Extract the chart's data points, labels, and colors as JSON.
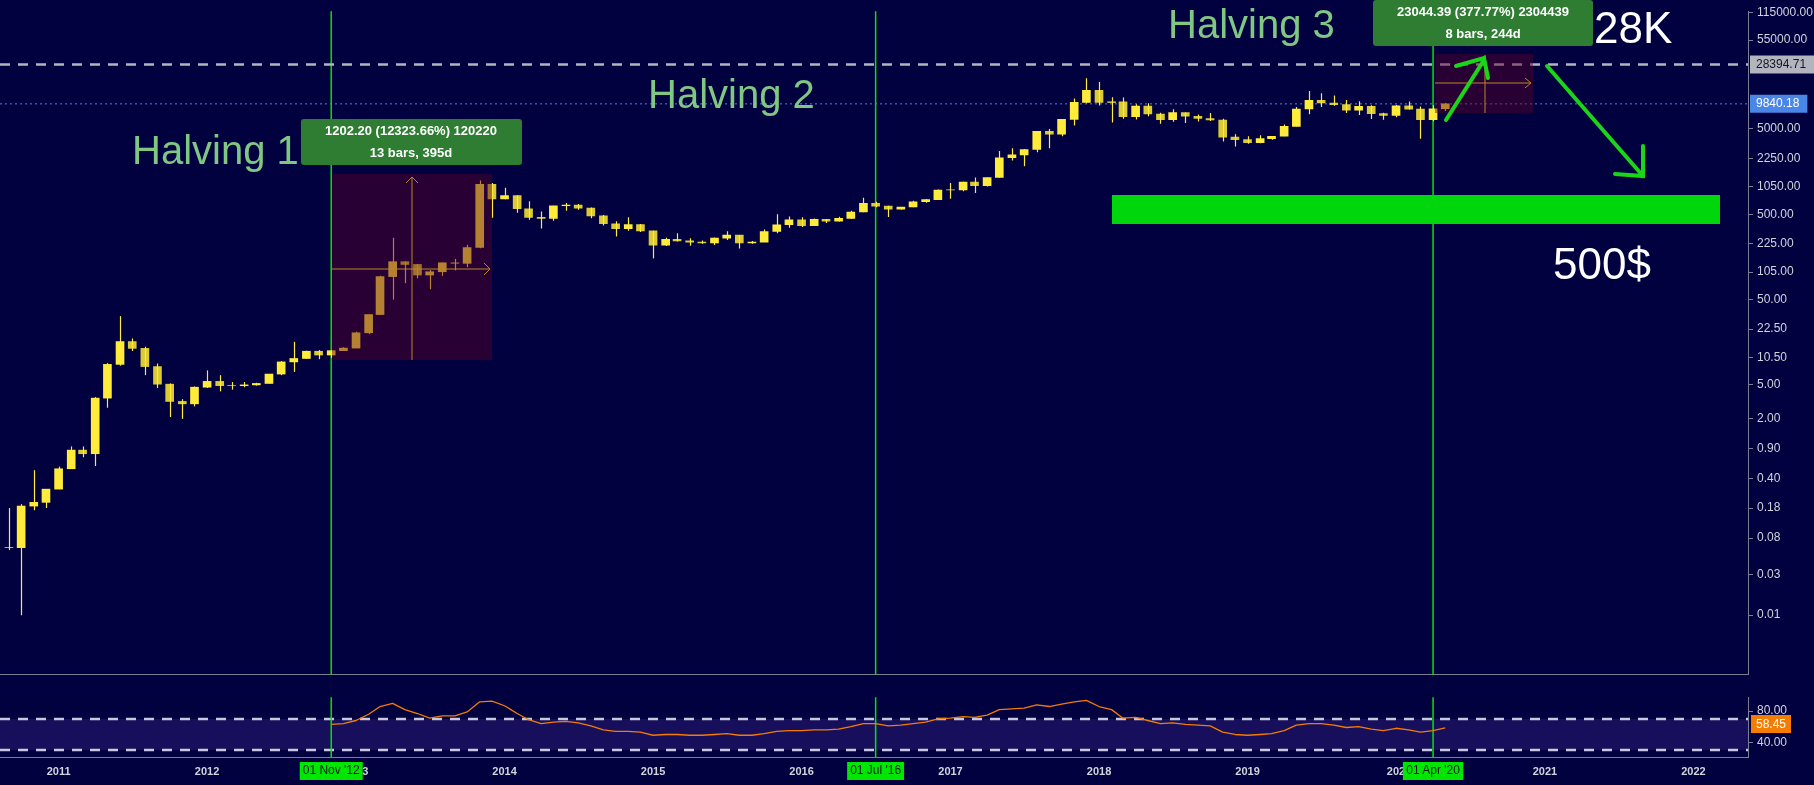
{
  "chart_data": [
    {
      "type": "candlestick",
      "log": true,
      "grid": false,
      "legend": false,
      "tick_labels": "y",
      "xlim": [
        "2010-08-10",
        "2022-05-15"
      ],
      "ylim": [
        0.002,
        120000
      ],
      "yticks": [
        0.01,
        0.03,
        0.08,
        0.18,
        {
          "value": 0.4,
          "label": "0.40"
        },
        {
          "value": 0.9,
          "label": "0.90"
        },
        {
          "value": 2,
          "label": "2.00"
        },
        {
          "value": 5,
          "label": "5.00"
        },
        {
          "value": 10.5,
          "label": "10.50"
        },
        {
          "value": 22.5,
          "label": "22.50"
        },
        {
          "value": 50,
          "label": "50.00"
        },
        {
          "value": 105,
          "label": "105.00"
        },
        {
          "value": 225,
          "label": "225.00"
        },
        {
          "value": 500,
          "label": "500.00"
        },
        {
          "value": 1050,
          "label": "1050.00"
        },
        {
          "value": 2250,
          "label": "2250.00"
        },
        {
          "value": 5000,
          "label": "5000.00"
        },
        {
          "value": 55000,
          "label": "55000.00"
        },
        {
          "value": 115000,
          "label": "115000.00"
        }
      ],
      "x": [
        "2010-09",
        "2010-10",
        "2010-11",
        "2010-12",
        "2011-01",
        "2011-02",
        "2011-03",
        "2011-04",
        "2011-05",
        "2011-06",
        "2011-07",
        "2011-08",
        "2011-09",
        "2011-10",
        "2011-11",
        "2011-12",
        "2012-01",
        "2012-02",
        "2012-03",
        "2012-04",
        "2012-05",
        "2012-06",
        "2012-07",
        "2012-08",
        "2012-09",
        "2012-10",
        "2012-11",
        "2012-12",
        "2013-01",
        "2013-02",
        "2013-03",
        "2013-04",
        "2013-05",
        "2013-06",
        "2013-07",
        "2013-08",
        "2013-09",
        "2013-10",
        "2013-11",
        "2013-12",
        "2014-01",
        "2014-02",
        "2014-03",
        "2014-04",
        "2014-05",
        "2014-06",
        "2014-07",
        "2014-08",
        "2014-09",
        "2014-10",
        "2014-11",
        "2014-12",
        "2015-01",
        "2015-02",
        "2015-03",
        "2015-04",
        "2015-05",
        "2015-06",
        "2015-07",
        "2015-08",
        "2015-09",
        "2015-10",
        "2015-11",
        "2015-12",
        "2016-01",
        "2016-02",
        "2016-03",
        "2016-04",
        "2016-05",
        "2016-06",
        "2016-07",
        "2016-08",
        "2016-09",
        "2016-10",
        "2016-11",
        "2016-12",
        "2017-01",
        "2017-02",
        "2017-03",
        "2017-04",
        "2017-05",
        "2017-06",
        "2017-07",
        "2017-08",
        "2017-09",
        "2017-10",
        "2017-11",
        "2017-12",
        "2018-01",
        "2018-02",
        "2018-03",
        "2018-04",
        "2018-05",
        "2018-06",
        "2018-07",
        "2018-08",
        "2018-09",
        "2018-10",
        "2018-11",
        "2018-12",
        "2019-01",
        "2019-02",
        "2019-03",
        "2019-04",
        "2019-05",
        "2019-06",
        "2019-07",
        "2019-08",
        "2019-09",
        "2019-10",
        "2019-11",
        "2019-12",
        "2020-01",
        "2020-02",
        "2020-03",
        "2020-04",
        "2020-05"
      ],
      "series": [
        {
          "color": "#ffeb3b",
          "colors": [
            "#ffeb3b",
            "#ffeb3b",
            "#ffeb3b",
            "#ffeb3b",
            "#ffeb3b",
            "#ffeb3b",
            "#dbca33",
            "#ffeb3b",
            "#ffeb3b",
            "#ffeb3b",
            "#dbca33",
            "#dbca33",
            "#dbca33",
            "#dbca33",
            "#dbca33",
            "#ffeb3b",
            "#ffeb3b",
            "#dbca33",
            "#ffeb3b",
            "#ffeb3b",
            "#ffeb3b",
            "#ffeb3b",
            "#ffeb3b",
            "#ffeb3b",
            "#ffeb3b",
            "#dbca33",
            "#ffeb3b",
            "#ffeb3b",
            "#ffeb3b",
            "#ffeb3b",
            "#ffeb3b",
            "#ffeb3b",
            "#dbca33",
            "#dbca33",
            "#ffeb3b",
            "#ffeb3b",
            "#dbca33",
            "#ffeb3b",
            "#ffeb3b",
            "#dbca33",
            "#ffeb3b",
            "#dbca33",
            "#dbca33",
            "#dbca33",
            "#ffeb3b",
            "#ffeb3b",
            "#dbca33",
            "#dbca33",
            "#dbca33",
            "#dbca33",
            "#ffeb3b",
            "#dbca33",
            "#dbca33",
            "#ffeb3b",
            "#dbca33",
            "#dbca33",
            "#dbca33",
            "#ffeb3b",
            "#ffeb3b",
            "#dbca33",
            "#ffeb3b",
            "#ffeb3b",
            "#ffeb3b",
            "#ffeb3b",
            "#dbca33",
            "#ffeb3b",
            "#dbca33",
            "#ffeb3b",
            "#ffeb3b",
            "#ffeb3b",
            "#dbca33",
            "#dbca33",
            "#ffeb3b",
            "#ffeb3b",
            "#ffeb3b",
            "#ffeb3b",
            "#ffeb3b",
            "#ffeb3b",
            "#dbca33",
            "#ffeb3b",
            "#ffeb3b",
            "#ffeb3b",
            "#ffeb3b",
            "#ffeb3b",
            "#dbca33",
            "#ffeb3b",
            "#ffeb3b",
            "#ffeb3b",
            "#dbca33",
            "#ffeb3b",
            "#dbca33",
            "#ffeb3b",
            "#dbca33",
            "#dbca33",
            "#ffeb3b",
            "#dbca33",
            "#dbca33",
            "#dbca33",
            "#dbca33",
            "#dbca33",
            "#dbca33",
            "#ffeb3b",
            "#ffeb3b",
            "#ffeb3b",
            "#ffeb3b",
            "#ffeb3b",
            "#dbca33",
            "#dbca33",
            "#dbca33",
            "#ffeb3b",
            "#dbca33",
            "#dbca33",
            "#ffeb3b",
            "#dbca33",
            "#dbca33",
            "#ffeb3b",
            "#ffeb3b"
          ],
          "ohlc": [
            [
              0.062,
              0.18,
              0.058,
              0.062
            ],
            [
              0.062,
              0.2,
              0.01,
              0.19
            ],
            [
              0.19,
              0.5,
              0.17,
              0.21
            ],
            [
              0.21,
              0.3,
              0.18,
              0.3
            ],
            [
              0.3,
              0.55,
              0.3,
              0.52
            ],
            [
              0.52,
              0.95,
              0.52,
              0.86
            ],
            [
              0.86,
              0.95,
              0.71,
              0.78
            ],
            [
              0.78,
              3.6,
              0.56,
              3.5
            ],
            [
              3.5,
              9,
              2.7,
              8.7
            ],
            [
              8.7,
              32,
              8.4,
              16.1
            ],
            [
              16.1,
              17.5,
              12.5,
              13.4
            ],
            [
              13.4,
              14,
              6.5,
              8.2
            ],
            [
              8.2,
              8.9,
              4.6,
              5.1
            ],
            [
              5.1,
              5.2,
              2.1,
              3.2
            ],
            [
              3.2,
              3.4,
              2,
              3
            ],
            [
              3,
              4.8,
              2.8,
              4.7
            ],
            [
              4.7,
              7.4,
              4.6,
              5.5
            ],
            [
              5.5,
              6.5,
              4.2,
              4.9
            ],
            [
              4.9,
              5.4,
              4.4,
              4.9
            ],
            [
              4.9,
              5.4,
              4.7,
              5
            ],
            [
              5,
              5.3,
              4.9,
              5.2
            ],
            [
              5.2,
              6.7,
              5.2,
              6.7
            ],
            [
              6.7,
              9.5,
              6.5,
              9.3
            ],
            [
              9.3,
              16,
              7.1,
              10.2
            ],
            [
              10.2,
              12.6,
              10.1,
              12.4
            ],
            [
              12.4,
              12.8,
              10,
              11.2
            ],
            [
              11.2,
              12.6,
              10.4,
              12.6
            ],
            [
              12.6,
              13.8,
              12.6,
              13.5
            ],
            [
              13.5,
              21,
              13.5,
              20.4
            ],
            [
              20.4,
              33.4,
              19.7,
              33.4
            ],
            [
              33.4,
              95,
              33,
              93
            ],
            [
              93,
              266,
              50,
              139
            ],
            [
              139,
              140,
              78,
              129
            ],
            [
              129,
              131,
              89,
              97
            ],
            [
              97,
              111,
              66,
              106
            ],
            [
              106,
              136,
              95,
              135
            ],
            [
              135,
              150,
              110,
              133
            ],
            [
              133,
              220,
              120,
              204
            ],
            [
              204,
              1240,
              200,
              1120
            ],
            [
              1120,
              1160,
              455,
              755
            ],
            [
              755,
              1020,
              750,
              830
            ],
            [
              830,
              835,
              520,
              580
            ],
            [
              580,
              710,
              430,
              460
            ],
            [
              460,
              540,
              340,
              448
            ],
            [
              448,
              630,
              420,
              630
            ],
            [
              630,
              680,
              550,
              640
            ],
            [
              640,
              660,
              565,
              589
            ],
            [
              589,
              600,
              450,
              478
            ],
            [
              478,
              490,
              370,
              387
            ],
            [
              387,
              415,
              275,
              338
            ],
            [
              338,
              460,
              320,
              378
            ],
            [
              378,
              385,
              310,
              320
            ],
            [
              320,
              320,
              152,
              217
            ],
            [
              217,
              265,
              212,
              254
            ],
            [
              254,
              300,
              240,
              244
            ],
            [
              244,
              262,
              214,
              236
            ],
            [
              236,
              247,
              225,
              230
            ],
            [
              230,
              267,
              218,
              263
            ],
            [
              263,
              316,
              250,
              285
            ],
            [
              285,
              286,
              198,
              230
            ],
            [
              230,
              243,
              226,
              236
            ],
            [
              236,
              331,
              236,
              314
            ],
            [
              314,
              500,
              300,
              377
            ],
            [
              377,
              470,
              347,
              430
            ],
            [
              430,
              462,
              355,
              368
            ],
            [
              368,
              445,
              366,
              437
            ],
            [
              437,
              440,
              396,
              416
            ],
            [
              416,
              468,
              412,
              448
            ],
            [
              448,
              550,
              440,
              531
            ],
            [
              531,
              780,
              527,
              673
            ],
            [
              673,
              703,
              605,
              624
            ],
            [
              624,
              628,
              466,
              574
            ],
            [
              574,
              610,
              570,
              609
            ],
            [
              609,
              720,
              605,
              701
            ],
            [
              701,
              753,
              682,
              742
            ],
            [
              742,
              975,
              740,
              963
            ],
            [
              963,
              1160,
              760,
              965
            ],
            [
              965,
              1200,
              930,
              1190
            ],
            [
              1190,
              1350,
              890,
              1080
            ],
            [
              1080,
              1350,
              1060,
              1348
            ],
            [
              1348,
              2760,
              1340,
              2300
            ],
            [
              2300,
              2980,
              2130,
              2480
            ],
            [
              2480,
              2920,
              1830,
              2875
            ],
            [
              2875,
              4740,
              2670,
              4703
            ],
            [
              4703,
              5010,
              2970,
              4338
            ],
            [
              4338,
              6470,
              4110,
              6468
            ],
            [
              6468,
              11400,
              5500,
              10233
            ],
            [
              10233,
              19666,
              10000,
              14156
            ],
            [
              14156,
              17700,
              9400,
              10221
            ],
            [
              10221,
              11800,
              5950,
              10397
            ],
            [
              10397,
              11700,
              6600,
              6973
            ],
            [
              6973,
              9750,
              6450,
              9240
            ],
            [
              9240,
              10020,
              7030,
              7495
            ],
            [
              7495,
              7760,
              5750,
              6404
            ],
            [
              6404,
              8500,
              6070,
              7780
            ],
            [
              7780,
              7780,
              5880,
              7037
            ],
            [
              7037,
              7400,
              6120,
              6625
            ],
            [
              6625,
              7680,
              6200,
              6371
            ],
            [
              6371,
              6580,
              3560,
              4017
            ],
            [
              4017,
              4330,
              3120,
              3742
            ],
            [
              3742,
              4110,
              3350,
              3457
            ],
            [
              3457,
              4210,
              3390,
              3854
            ],
            [
              3854,
              4110,
              3730,
              4105
            ],
            [
              4105,
              5640,
              4100,
              5350
            ],
            [
              5350,
              9070,
              5330,
              8574
            ],
            [
              8574,
              13880,
              7460,
              10817
            ],
            [
              10817,
              13130,
              9070,
              10085
            ],
            [
              10085,
              12330,
              9350,
              9630
            ],
            [
              9630,
              10900,
              7710,
              8293
            ],
            [
              8293,
              10540,
              7300,
              9199
            ],
            [
              9199,
              9510,
              6530,
              7569
            ],
            [
              7569,
              7750,
              6430,
              7193
            ],
            [
              7193,
              9570,
              6870,
              9350
            ],
            [
              9350,
              10500,
              8450,
              8544
            ],
            [
              8544,
              9190,
              3850,
              6424
            ],
            [
              6424,
              9470,
              6150,
              8630
            ],
            [
              8630,
              10070,
              8100,
              9840.18
            ]
          ]
        }
      ],
      "ref_lines": [
        {
          "axis": "x",
          "value": "2012-11-01",
          "color": "#00e600"
        },
        {
          "axis": "x",
          "value": "2016-07-01",
          "color": "#00e600"
        },
        {
          "axis": "x",
          "value": "2020-04-01",
          "color": "#00e600"
        },
        {
          "axis": "y",
          "value": 28394.71,
          "label": "28394.71",
          "color": "#b2b5be",
          "line_style": "dashed"
        },
        {
          "axis": "y",
          "value": 9840.18,
          "label": "9840.18",
          "color": "#4a86e8",
          "line_style": "dotted"
        }
      ],
      "annotations": [
        "Halving 1",
        "1202.20 (12323.66%) 120220",
        "13 bars, 395d",
        "Halving 2",
        "Halving 3",
        "23044.39 (377.77%) 2304439",
        "8 bars, 244d",
        "28K",
        "500$"
      ]
    },
    {
      "type": "line",
      "grid": false,
      "legend": false,
      "marker": "none",
      "xlim": [
        "2010-08-10",
        "2022-05-15"
      ],
      "ylim": [
        21,
        98
      ],
      "yticks": [
        {
          "value": 40,
          "label": "40.00"
        },
        {
          "value": 80,
          "label": "80.00"
        }
      ],
      "xticks": [
        "2011",
        "2012",
        "2013",
        "2014",
        "2015",
        "2016",
        "2017",
        "2018",
        "2019",
        {
          "value": "2020",
          "label": "202"
        },
        "2021",
        "2022"
      ],
      "x": [
        "2012-11",
        "2012-12",
        "2013-01",
        "2013-02",
        "2013-03",
        "2013-04",
        "2013-05",
        "2013-06",
        "2013-07",
        "2013-08",
        "2013-09",
        "2013-10",
        "2013-11",
        "2013-12",
        "2014-01",
        "2014-02",
        "2014-03",
        "2014-04",
        "2014-05",
        "2014-06",
        "2014-07",
        "2014-08",
        "2014-09",
        "2014-10",
        "2014-11",
        "2014-12",
        "2015-01",
        "2015-02",
        "2015-03",
        "2015-04",
        "2015-05",
        "2015-06",
        "2015-07",
        "2015-08",
        "2015-09",
        "2015-10",
        "2015-11",
        "2015-12",
        "2016-01",
        "2016-02",
        "2016-03",
        "2016-04",
        "2016-05",
        "2016-06",
        "2016-07",
        "2016-08",
        "2016-09",
        "2016-10",
        "2016-11",
        "2016-12",
        "2017-01",
        "2017-02",
        "2017-03",
        "2017-04",
        "2017-05",
        "2017-06",
        "2017-07",
        "2017-08",
        "2017-09",
        "2017-10",
        "2017-11",
        "2017-12",
        "2018-01",
        "2018-02",
        "2018-03",
        "2018-04",
        "2018-05",
        "2018-06",
        "2018-07",
        "2018-08",
        "2018-09",
        "2018-10",
        "2018-11",
        "2018-12",
        "2019-01",
        "2019-02",
        "2019-03",
        "2019-04",
        "2019-05",
        "2019-06",
        "2019-07",
        "2019-08",
        "2019-09",
        "2019-10",
        "2019-11",
        "2019-12",
        "2020-01",
        "2020-02",
        "2020-03",
        "2020-04",
        "2020-05"
      ],
      "series": [
        {
          "color": "#f57c00",
          "values": [
            63,
            64,
            68,
            76,
            86,
            90,
            82,
            77,
            71,
            74,
            74,
            79,
            92,
            93,
            87,
            77,
            69,
            64,
            66,
            67,
            65,
            61,
            56,
            54,
            54,
            53,
            49,
            50,
            50,
            49,
            49,
            50,
            51,
            49,
            49,
            51,
            54,
            55,
            55,
            56,
            56,
            57,
            60,
            64,
            64,
            61,
            62,
            64,
            66,
            70,
            71,
            73,
            72,
            75,
            82,
            83,
            84,
            88,
            86,
            89,
            92,
            94,
            86,
            82,
            71,
            72,
            68,
            64,
            65,
            63,
            62,
            61,
            53,
            50,
            49,
            50,
            51,
            55,
            62,
            64,
            64,
            62,
            59,
            60,
            57,
            55,
            58,
            56,
            53,
            55,
            58.45
          ]
        }
      ],
      "bands": [
        {
          "axis": "y",
          "from": 30,
          "to": 70,
          "color": "#170f5c"
        }
      ],
      "ref_lines": [
        {
          "axis": "y",
          "value": 70,
          "color": "#c8c8dc",
          "line_style": "dashed"
        },
        {
          "axis": "y",
          "value": 30,
          "color": "#c8c8dc",
          "line_style": "dashed"
        },
        {
          "axis": "x",
          "value": "2012-11-01",
          "label": "01 Nov '12",
          "color": "#00e600"
        },
        {
          "axis": "x",
          "value": "2016-07-01",
          "label": "01 Jul '16",
          "color": "#00e600"
        },
        {
          "axis": "x",
          "value": "2020-04-01",
          "label": "01 Apr '20",
          "color": "#00e600"
        }
      ],
      "annotations": [
        "58.45"
      ]
    }
  ]
}
